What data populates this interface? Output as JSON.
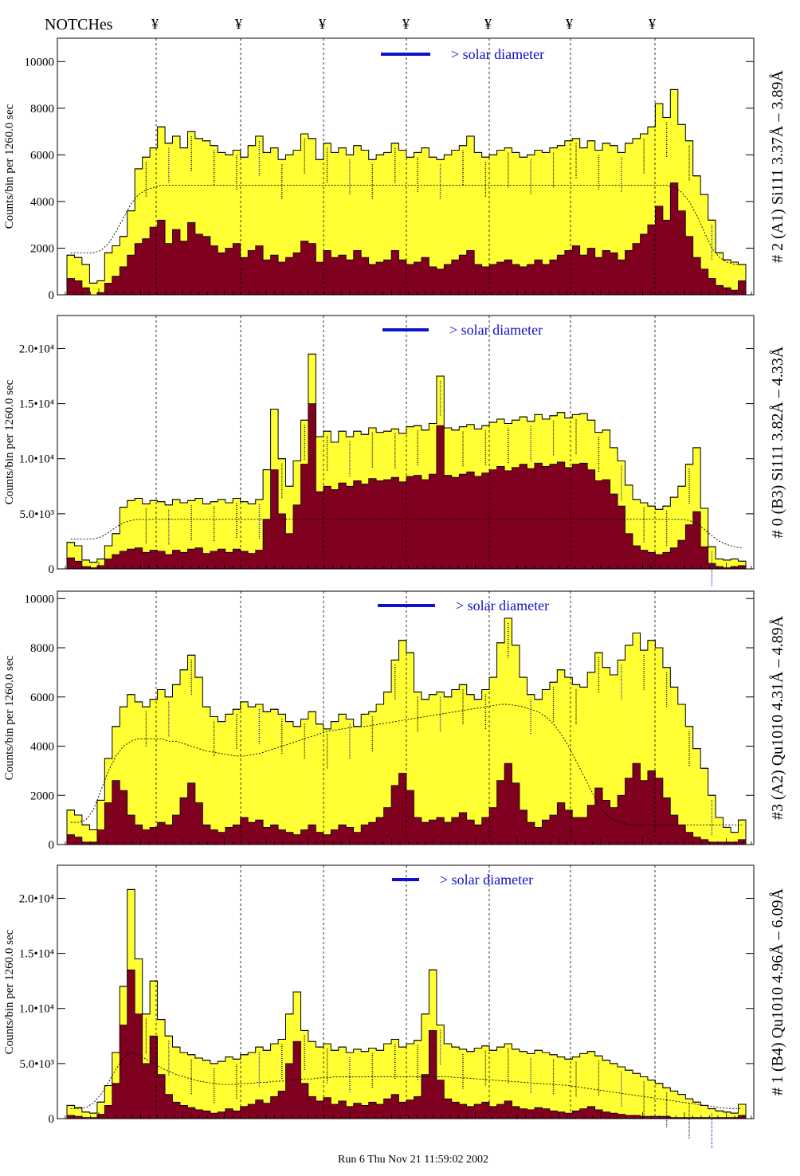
{
  "header": {
    "notch_label": "NOTCHes",
    "notch_symbol": "¥",
    "notch_count": 7
  },
  "footer": {
    "run_text": "Run 6 Thu Nov 21 11:59:02 2002"
  },
  "colors": {
    "envelope_fill": "#ffff33",
    "detail_fill": "#800020",
    "legend_bar": "#1010d0",
    "annotation_blue": "#1a1ab0"
  },
  "chart_data": [
    {
      "type": "area",
      "panel_id": "A1",
      "title": "# 2 (A1) Si111  3.37Å – 3.89Å",
      "ylabel": "Counts/bin per   1260.0 sec",
      "legend": "> solar diameter",
      "ylim": [
        0,
        11000
      ],
      "y_ticks": [
        0,
        2000,
        4000,
        6000,
        8000,
        10000
      ],
      "y_tick_labels": [
        "0",
        "2000",
        "4000",
        "6000",
        "8000",
        "10000"
      ],
      "envelope": [
        1700,
        1600,
        1300,
        500,
        600,
        1800,
        2100,
        2500,
        3600,
        5400,
        5900,
        6300,
        7200,
        6500,
        6800,
        6300,
        7000,
        6700,
        6600,
        6400,
        6100,
        6000,
        6200,
        5900,
        6400,
        6800,
        6100,
        6300,
        5800,
        6000,
        6200,
        6900,
        6700,
        5800,
        6500,
        6100,
        6300,
        6000,
        6400,
        6200,
        5800,
        6000,
        6100,
        6500,
        6200,
        5900,
        6100,
        6300,
        5900,
        5800,
        6000,
        6200,
        6400,
        6800,
        6100,
        5900,
        6000,
        6200,
        6300,
        6100,
        5900,
        6000,
        6200,
        6100,
        6300,
        6400,
        6600,
        6700,
        6300,
        6600,
        6200,
        6500,
        6400,
        6100,
        6500,
        6700,
        6900,
        7200,
        8200,
        7600,
        8800,
        7300,
        6600,
        5100,
        4300,
        3200,
        1800,
        1500,
        1400,
        1300
      ],
      "detail": [
        700,
        600,
        300,
        0,
        100,
        500,
        800,
        1200,
        1700,
        2200,
        2400,
        2900,
        3200,
        2200,
        2800,
        2300,
        3100,
        2600,
        2500,
        2100,
        1800,
        2000,
        2200,
        1600,
        1900,
        2100,
        1500,
        1700,
        1400,
        1600,
        1800,
        2300,
        2200,
        1400,
        1900,
        1600,
        1700,
        1500,
        1900,
        1600,
        1300,
        1400,
        1500,
        1900,
        1500,
        1300,
        1400,
        1600,
        1200,
        1100,
        1300,
        1500,
        1700,
        1900,
        1300,
        1200,
        1300,
        1400,
        1500,
        1300,
        1200,
        1300,
        1500,
        1300,
        1500,
        1700,
        1900,
        2100,
        1700,
        2000,
        1600,
        1900,
        1800,
        1500,
        1900,
        2200,
        2600,
        3000,
        3800,
        3200,
        4800,
        3600,
        2500,
        1600,
        1100,
        700,
        400,
        300,
        200,
        600
      ],
      "model": [
        1800,
        1800,
        1800,
        1800,
        1900,
        2200,
        2700,
        3300,
        3900,
        4300,
        4500,
        4600,
        4700,
        4700,
        4700,
        4700,
        4700,
        4700,
        4700,
        4700,
        4700,
        4700,
        4700,
        4700,
        4700,
        4700,
        4700,
        4700,
        4700,
        4700,
        4700,
        4700,
        4700,
        4700,
        4700,
        4700,
        4700,
        4700,
        4700,
        4700,
        4700,
        4700,
        4700,
        4700,
        4700,
        4700,
        4700,
        4700,
        4700,
        4700,
        4700,
        4700,
        4700,
        4700,
        4700,
        4700,
        4700,
        4700,
        4700,
        4700,
        4700,
        4700,
        4700,
        4700,
        4700,
        4700,
        4700,
        4700,
        4700,
        4700,
        4700,
        4700,
        4700,
        4700,
        4700,
        4700,
        4700,
        4700,
        4700,
        4700,
        4600,
        4400,
        4000,
        3400,
        2700,
        2000,
        1600,
        1400,
        1300,
        1300
      ]
    },
    {
      "type": "area",
      "panel_id": "B3",
      "title": "# 0 (B3) Si111  3.82Å – 4.33Å",
      "ylabel": "Counts/bin per   1260.0 sec",
      "legend": "> solar diameter",
      "ylim": [
        0,
        23000
      ],
      "y_ticks": [
        0,
        5000,
        10000,
        15000,
        20000
      ],
      "y_tick_labels": [
        "0",
        "5.0•10³",
        "1.0•10⁴",
        "1.5•10⁴",
        "2.0•10⁴"
      ],
      "envelope": [
        2400,
        2100,
        800,
        600,
        900,
        2100,
        3200,
        5600,
        6200,
        6400,
        5900,
        6200,
        6100,
        5800,
        6300,
        6000,
        6200,
        6400,
        5900,
        6100,
        6300,
        6000,
        6400,
        6100,
        5900,
        6300,
        9000,
        14500,
        10000,
        7500,
        9800,
        13500,
        19500,
        12000,
        12500,
        11500,
        12500,
        12000,
        12500,
        12200,
        12800,
        12400,
        12500,
        12700,
        12300,
        12900,
        13000,
        12600,
        13200,
        17500,
        12800,
        12600,
        12900,
        13100,
        12700,
        13000,
        13300,
        13600,
        13200,
        13500,
        13800,
        13400,
        14000,
        13600,
        13900,
        14200,
        13700,
        14000,
        14100,
        13500,
        12400,
        12600,
        11000,
        9800,
        7600,
        6300,
        6000,
        5700,
        5400,
        5700,
        6500,
        7500,
        9500,
        11000,
        5500,
        2000,
        900,
        800,
        900,
        700
      ],
      "detail": [
        1000,
        700,
        200,
        100,
        300,
        900,
        1300,
        1600,
        1800,
        1900,
        1500,
        1700,
        1600,
        1300,
        1700,
        1500,
        1800,
        1900,
        1400,
        1600,
        1800,
        1500,
        1800,
        1600,
        1400,
        1700,
        4500,
        9000,
        5000,
        3200,
        5800,
        9500,
        15000,
        7000,
        7500,
        7200,
        7800,
        7500,
        8000,
        7700,
        8200,
        8000,
        8100,
        8300,
        7900,
        8400,
        8500,
        8100,
        8600,
        13000,
        8500,
        8300,
        8600,
        8800,
        8400,
        8700,
        9000,
        9300,
        8900,
        9200,
        9500,
        9100,
        9600,
        9300,
        9500,
        9700,
        9200,
        9500,
        9600,
        9000,
        8000,
        8100,
        6800,
        5700,
        3200,
        2100,
        1700,
        1500,
        1300,
        1500,
        1900,
        2600,
        4000,
        5200,
        2000,
        500,
        200,
        100,
        200,
        300
      ],
      "model": [
        2700,
        2700,
        2700,
        2700,
        2900,
        3300,
        3800,
        4200,
        4400,
        4500,
        4500,
        4500,
        4500,
        4500,
        4500,
        4500,
        4500,
        4500,
        4500,
        4500,
        4500,
        4500,
        4500,
        4500,
        4500,
        4500,
        4500,
        4500,
        4500,
        4500,
        4500,
        4500,
        4500,
        4500,
        4500,
        4500,
        4500,
        4500,
        4500,
        4500,
        4500,
        4500,
        4500,
        4500,
        4500,
        4500,
        4500,
        4500,
        4500,
        4500,
        4500,
        4500,
        4500,
        4500,
        4500,
        4500,
        4500,
        4500,
        4500,
        4500,
        4500,
        4500,
        4500,
        4500,
        4500,
        4500,
        4500,
        4500,
        4500,
        4500,
        4500,
        4500,
        4500,
        4500,
        4500,
        4500,
        4500,
        4500,
        4500,
        4500,
        4500,
        4500,
        4400,
        4100,
        3600,
        3000,
        2500,
        2200,
        2000,
        1900
      ]
    },
    {
      "type": "area",
      "panel_id": "A2",
      "title": "#3 (A2) Qu1010  4.31Å – 4.89Å",
      "ylabel": "Counts/bin per   1260.0 sec",
      "legend": "> solar diameter",
      "ylim": [
        0,
        10300
      ],
      "y_ticks": [
        0,
        2000,
        4000,
        6000,
        8000,
        10000
      ],
      "y_tick_labels": [
        "0",
        "2000",
        "4000",
        "6000",
        "8000",
        "10000"
      ],
      "envelope": [
        1400,
        1200,
        800,
        600,
        1800,
        3500,
        4800,
        5600,
        6100,
        5800,
        5600,
        5900,
        6300,
        6000,
        6500,
        7100,
        7700,
        6800,
        5600,
        5200,
        5000,
        5300,
        5500,
        5800,
        5600,
        5700,
        5400,
        5500,
        5300,
        5000,
        4800,
        5100,
        5400,
        4900,
        4700,
        5000,
        5300,
        5100,
        4800,
        5300,
        5400,
        5700,
        6200,
        7500,
        8300,
        7800,
        6200,
        5900,
        6100,
        6200,
        6000,
        6300,
        6500,
        6100,
        5900,
        6300,
        6800,
        8200,
        9200,
        8100,
        6800,
        6100,
        5900,
        6300,
        6600,
        7100,
        6800,
        6500,
        6400,
        7000,
        7800,
        7200,
        6900,
        7500,
        8100,
        8600,
        7900,
        8300,
        8000,
        7200,
        6400,
        5700,
        4800,
        3900,
        3100,
        2000,
        1100,
        700,
        500,
        1000
      ],
      "detail": [
        400,
        300,
        100,
        100,
        600,
        1700,
        2600,
        2200,
        1200,
        800,
        600,
        700,
        900,
        800,
        1200,
        1900,
        2500,
        1700,
        800,
        600,
        500,
        700,
        800,
        1100,
        900,
        1000,
        700,
        800,
        600,
        500,
        400,
        600,
        800,
        500,
        400,
        600,
        800,
        700,
        500,
        800,
        900,
        1100,
        1500,
        2400,
        2900,
        2200,
        1100,
        900,
        1000,
        1100,
        900,
        1100,
        1300,
        1000,
        800,
        1100,
        1500,
        2600,
        3300,
        2500,
        1400,
        900,
        700,
        1000,
        1200,
        1700,
        1400,
        1100,
        1100,
        1600,
        2300,
        1800,
        1500,
        2000,
        2700,
        3300,
        2600,
        3000,
        2700,
        1900,
        1200,
        800,
        500,
        300,
        200,
        100,
        100,
        100,
        100,
        200
      ],
      "model": [
        900,
        900,
        1000,
        1400,
        2200,
        3000,
        3600,
        4000,
        4200,
        4300,
        4300,
        4300,
        4300,
        4200,
        4200,
        4100,
        4000,
        3900,
        3800,
        3750,
        3700,
        3650,
        3600,
        3600,
        3650,
        3700,
        3800,
        3900,
        4000,
        4100,
        4200,
        4300,
        4400,
        4500,
        4600,
        4650,
        4700,
        4750,
        4800,
        4800,
        4850,
        4900,
        4950,
        5000,
        5050,
        5100,
        5150,
        5200,
        5250,
        5300,
        5350,
        5400,
        5450,
        5500,
        5550,
        5600,
        5650,
        5700,
        5700,
        5650,
        5600,
        5500,
        5400,
        5200,
        4900,
        4500,
        4000,
        3400,
        2800,
        2200,
        1600,
        1200,
        1000,
        900,
        800,
        800,
        800,
        800,
        800,
        800,
        800,
        800,
        800,
        800,
        800,
        800,
        800,
        800,
        800,
        800
      ]
    },
    {
      "type": "area",
      "panel_id": "B4",
      "title": "# 1 (B4) Qu1010 4.96Å – 6.09Å",
      "ylabel": "Counts/bin per   1260.0 sec",
      "legend": "> solar diameter",
      "ylim": [
        0,
        23000
      ],
      "y_ticks": [
        0,
        5000,
        10000,
        15000,
        20000
      ],
      "y_tick_labels": [
        "0",
        "5.0•10³",
        "1.0•10⁴",
        "1.5•10⁴",
        "2.0•10⁴"
      ],
      "envelope": [
        1200,
        1000,
        600,
        500,
        1500,
        3000,
        6000,
        12000,
        20800,
        14500,
        9500,
        12500,
        9000,
        7500,
        6500,
        6000,
        5800,
        5500,
        5300,
        5000,
        5200,
        5600,
        5400,
        5800,
        6000,
        6500,
        6200,
        6800,
        7200,
        9500,
        11500,
        8000,
        7000,
        6500,
        6800,
        6200,
        6500,
        6000,
        6300,
        6100,
        6400,
        6200,
        6800,
        7200,
        6500,
        6800,
        7100,
        9500,
        13500,
        8500,
        6800,
        6500,
        6300,
        6100,
        6400,
        6600,
        6200,
        6500,
        6800,
        6300,
        6100,
        5900,
        6200,
        6000,
        5800,
        5600,
        5400,
        5600,
        5900,
        6100,
        5700,
        5300,
        5000,
        4700,
        4400,
        4100,
        3800,
        3500,
        3200,
        2800,
        2500,
        2200,
        1800,
        1500,
        1200,
        900,
        700,
        600,
        500,
        1300
      ],
      "detail": [
        300,
        200,
        100,
        100,
        400,
        1200,
        3200,
        8500,
        13500,
        9500,
        5000,
        7500,
        4000,
        2200,
        1500,
        1200,
        1000,
        800,
        700,
        500,
        600,
        900,
        700,
        1100,
        1300,
        1700,
        1400,
        2000,
        2500,
        5000,
        7000,
        3200,
        2000,
        1600,
        1900,
        1300,
        1600,
        1100,
        1400,
        1200,
        1500,
        1300,
        1800,
        2200,
        1500,
        1700,
        2000,
        4000,
        8000,
        3500,
        1800,
        1500,
        1300,
        1100,
        1300,
        1500,
        1100,
        1300,
        1600,
        1100,
        900,
        800,
        1000,
        900,
        700,
        600,
        500,
        700,
        900,
        1100,
        800,
        600,
        500,
        400,
        300,
        300,
        200,
        200,
        200,
        200,
        100,
        100,
        100,
        100,
        100,
        100,
        100,
        100,
        100,
        300
      ],
      "model": [
        900,
        900,
        1000,
        1400,
        2200,
        3300,
        4500,
        5500,
        6000,
        5800,
        5400,
        5000,
        4600,
        4300,
        4000,
        3800,
        3600,
        3400,
        3300,
        3200,
        3100,
        3100,
        3100,
        3200,
        3200,
        3300,
        3300,
        3400,
        3400,
        3500,
        3500,
        3600,
        3600,
        3700,
        3700,
        3800,
        3800,
        3800,
        3800,
        3800,
        3800,
        3800,
        3800,
        3800,
        3800,
        3800,
        3800,
        3800,
        3800,
        3800,
        3800,
        3750,
        3700,
        3650,
        3600,
        3550,
        3500,
        3450,
        3400,
        3350,
        3300,
        3250,
        3200,
        3150,
        3100,
        3050,
        3000,
        2900,
        2800,
        2700,
        2600,
        2500,
        2400,
        2300,
        2200,
        2100,
        2000,
        1900,
        1800,
        1700,
        1600,
        1500,
        1400,
        1300,
        1200,
        1100,
        1000,
        950,
        900,
        900
      ]
    }
  ]
}
